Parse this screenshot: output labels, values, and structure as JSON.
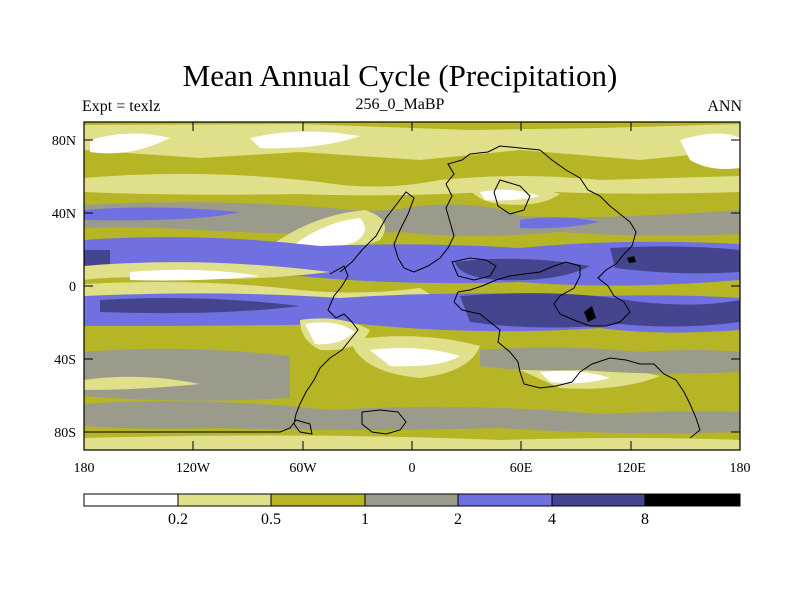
{
  "title": "Mean Annual Cycle (Precipitation)",
  "subtitle_left": "Expt = texlz",
  "subtitle_center": "256_0_MaBP",
  "subtitle_right": "ANN",
  "y_ticks": [
    "80N",
    "40N",
    "0",
    "40S",
    "80S"
  ],
  "x_ticks": [
    "180",
    "120W",
    "60W",
    "0",
    "60E",
    "120E",
    "180"
  ],
  "legend": {
    "labels": [
      "0.2",
      "0.5",
      "1",
      "2",
      "4",
      "8"
    ],
    "colors": [
      "#ffffff",
      "#e0e08a",
      "#b5b526",
      "#9b9b8c",
      "#7070e0",
      "#45458f",
      "#000000"
    ]
  }
}
